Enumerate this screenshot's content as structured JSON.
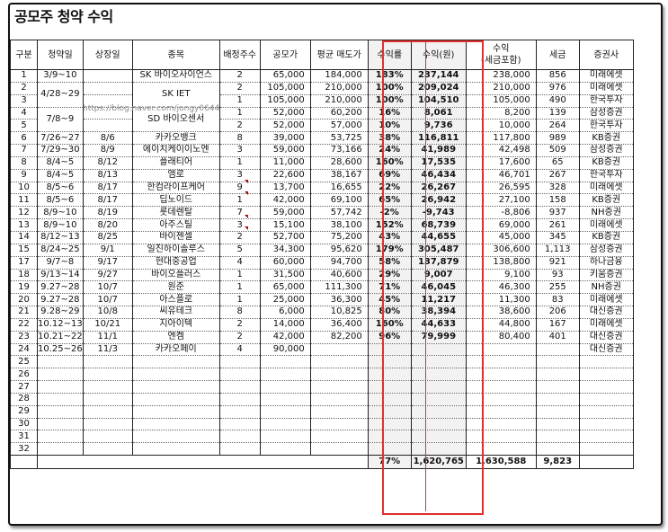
{
  "title": "공모주 청약 수익",
  "watermark": "https://blog.naver.com/jongy0644",
  "headers": {
    "no": "구분",
    "sub_date": "청약일",
    "list_date": "상장일",
    "name": "종목",
    "alloc": "배정주수",
    "ipo_price": "공모가",
    "avg_sell": "평균 매도가",
    "rate": "수익률",
    "profit": "수익(원)",
    "gross_line1": "수익",
    "gross_line2": "(세금포함)",
    "tax": "세금",
    "broker": "증권사"
  },
  "rows": [
    {
      "no": "1",
      "sub_date": "3/9~10",
      "list_date": "",
      "name": "SK 바이오사이언스",
      "alloc": "2",
      "ipo_price": "65,000",
      "avg_sell": "184,000",
      "rate": "183%",
      "profit": "237,144",
      "gross": "238,000",
      "tax": "856",
      "broker": "미래에셋"
    },
    {
      "no": "2",
      "sub_date": "",
      "list_date": "",
      "name": "",
      "alloc": "2",
      "ipo_price": "105,000",
      "avg_sell": "210,000",
      "rate": "100%",
      "profit": "209,024",
      "gross": "210,000",
      "tax": "976",
      "broker": "미래에셋"
    },
    {
      "no": "3",
      "sub_date": "",
      "list_date": "",
      "name": "",
      "alloc": "1",
      "ipo_price": "105,000",
      "avg_sell": "210,000",
      "rate": "100%",
      "profit": "104,510",
      "gross": "105,000",
      "tax": "490",
      "broker": "한국투자"
    },
    {
      "no": "4",
      "sub_date": "",
      "list_date": "",
      "name": "",
      "alloc": "1",
      "ipo_price": "52,000",
      "avg_sell": "60,200",
      "rate": "16%",
      "profit": "8,061",
      "gross": "8,200",
      "tax": "139",
      "broker": "삼성증권"
    },
    {
      "no": "5",
      "sub_date": "",
      "list_date": "",
      "name": "",
      "alloc": "2",
      "ipo_price": "52,000",
      "avg_sell": "57,000",
      "rate": "10%",
      "profit": "9,736",
      "gross": "10,000",
      "tax": "264",
      "broker": "한국투자"
    },
    {
      "no": "6",
      "sub_date": "7/26~27",
      "list_date": "8/6",
      "name": "카카오뱅크",
      "alloc": "8",
      "ipo_price": "39,000",
      "avg_sell": "53,725",
      "rate": "38%",
      "profit": "116,811",
      "gross": "117,800",
      "tax": "989",
      "broker": "KB증권"
    },
    {
      "no": "7",
      "sub_date": "7/29~30",
      "list_date": "8/9",
      "name": "에이치케이이노엔",
      "alloc": "3",
      "ipo_price": "59,000",
      "avg_sell": "73,166",
      "rate": "24%",
      "profit": "41,989",
      "gross": "42,498",
      "tax": "509",
      "broker": "삼성증권"
    },
    {
      "no": "8",
      "sub_date": "8/4~5",
      "list_date": "8/12",
      "name": "플래티어",
      "alloc": "1",
      "ipo_price": "11,000",
      "avg_sell": "28,600",
      "rate": "160%",
      "profit": "17,535",
      "gross": "17,600",
      "tax": "65",
      "broker": "KB증권"
    },
    {
      "no": "9",
      "sub_date": "8/4~5",
      "list_date": "8/13",
      "name": "엠로",
      "alloc": "3",
      "ipo_price": "22,600",
      "avg_sell": "38,167",
      "rate": "69%",
      "profit": "46,434",
      "gross": "46,701",
      "tax": "267",
      "broker": "한국투자"
    },
    {
      "no": "10",
      "sub_date": "8/5~6",
      "list_date": "8/17",
      "name": "한컴라이프케어",
      "alloc": "9",
      "ipo_price": "13,700",
      "avg_sell": "16,655",
      "rate": "22%",
      "profit": "26,267",
      "gross": "26,595",
      "tax": "328",
      "broker": "미래에셋"
    },
    {
      "no": "11",
      "sub_date": "8/5~6",
      "list_date": "8/17",
      "name": "딥노이드",
      "alloc": "1",
      "ipo_price": "42,000",
      "avg_sell": "69,100",
      "rate": "65%",
      "profit": "26,942",
      "gross": "27,100",
      "tax": "158",
      "broker": "KB증권"
    },
    {
      "no": "12",
      "sub_date": "8/9~10",
      "list_date": "8/19",
      "name": "롯데렌탈",
      "alloc": "7",
      "ipo_price": "59,000",
      "avg_sell": "57,742",
      "rate": "-2%",
      "profit": "-9,743",
      "gross": "-8,806",
      "tax": "937",
      "broker": "NH증권"
    },
    {
      "no": "13",
      "sub_date": "8/9~10",
      "list_date": "8/20",
      "name": "아주스틸",
      "alloc": "3",
      "ipo_price": "15,100",
      "avg_sell": "38,100",
      "rate": "152%",
      "profit": "68,739",
      "gross": "69,000",
      "tax": "261",
      "broker": "미래에셋"
    },
    {
      "no": "14",
      "sub_date": "8/12~13",
      "list_date": "8/25",
      "name": "바이젠셀",
      "alloc": "2",
      "ipo_price": "52,700",
      "avg_sell": "75,200",
      "rate": "43%",
      "profit": "44,655",
      "gross": "45,000",
      "tax": "345",
      "broker": "KB증권"
    },
    {
      "no": "15",
      "sub_date": "8/24~25",
      "list_date": "9/1",
      "name": "일진하이솔루스",
      "alloc": "5",
      "ipo_price": "34,300",
      "avg_sell": "95,620",
      "rate": "179%",
      "profit": "305,487",
      "gross": "306,600",
      "tax": "1,113",
      "broker": "삼성증권"
    },
    {
      "no": "17",
      "sub_date": "9/7~8",
      "list_date": "9/17",
      "name": "현대중공업",
      "alloc": "4",
      "ipo_price": "60,000",
      "avg_sell": "94,700",
      "rate": "58%",
      "profit": "137,879",
      "gross": "138,800",
      "tax": "921",
      "broker": "하나금융"
    },
    {
      "no": "18",
      "sub_date": "9/13~14",
      "list_date": "9/27",
      "name": "바이오플러스",
      "alloc": "1",
      "ipo_price": "31,500",
      "avg_sell": "40,600",
      "rate": "29%",
      "profit": "9,007",
      "gross": "9,100",
      "tax": "93",
      "broker": "키움증권"
    },
    {
      "no": "19",
      "sub_date": "9.27~28",
      "list_date": "10/7",
      "name": "원준",
      "alloc": "1",
      "ipo_price": "65,000",
      "avg_sell": "111,300",
      "rate": "71%",
      "profit": "46,045",
      "gross": "46,300",
      "tax": "255",
      "broker": "NH증권"
    },
    {
      "no": "20",
      "sub_date": "9.27~28",
      "list_date": "10/7",
      "name": "아스플로",
      "alloc": "1",
      "ipo_price": "25,000",
      "avg_sell": "36,300",
      "rate": "45%",
      "profit": "11,217",
      "gross": "11,300",
      "tax": "83",
      "broker": "미래에셋"
    },
    {
      "no": "21",
      "sub_date": "9.28~29",
      "list_date": "10/8",
      "name": "씨유테크",
      "alloc": "8",
      "ipo_price": "6,000",
      "avg_sell": "10,825",
      "rate": "80%",
      "profit": "38,394",
      "gross": "38,600",
      "tax": "206",
      "broker": "대신증권"
    },
    {
      "no": "22",
      "sub_date": "10.12~13",
      "list_date": "10/21",
      "name": "지아이텍",
      "alloc": "2",
      "ipo_price": "14,000",
      "avg_sell": "36,400",
      "rate": "160%",
      "profit": "44,633",
      "gross": "44,800",
      "tax": "167",
      "broker": "미래에셋"
    },
    {
      "no": "23",
      "sub_date": "10.21~22",
      "list_date": "11/1",
      "name": "엔켐",
      "alloc": "2",
      "ipo_price": "42,000",
      "avg_sell": "82,200",
      "rate": "96%",
      "profit": "79,999",
      "gross": "80,400",
      "tax": "401",
      "broker": "대신증권"
    },
    {
      "no": "24",
      "sub_date": "10.25~26",
      "list_date": "11/3",
      "name": "카카오페이",
      "alloc": "4",
      "ipo_price": "90,000",
      "avg_sell": "",
      "rate": "",
      "profit": "",
      "gross": "",
      "tax": "",
      "broker": "대신증권"
    },
    {
      "no": "25"
    },
    {
      "no": "26"
    },
    {
      "no": "27"
    },
    {
      "no": "28"
    },
    {
      "no": "29"
    },
    {
      "no": "30"
    },
    {
      "no": "31"
    },
    {
      "no": "32"
    }
  ],
  "merged": {
    "sub_date_2_3": "4/28~29",
    "sub_date_4_5": "7/8~9",
    "name_2_3": "SK IET",
    "name_4_5": "SD 바이오센서"
  },
  "totals": {
    "rate": "77%",
    "profit": "1,620,765",
    "gross": "1,630,588",
    "tax": "9,823"
  }
}
